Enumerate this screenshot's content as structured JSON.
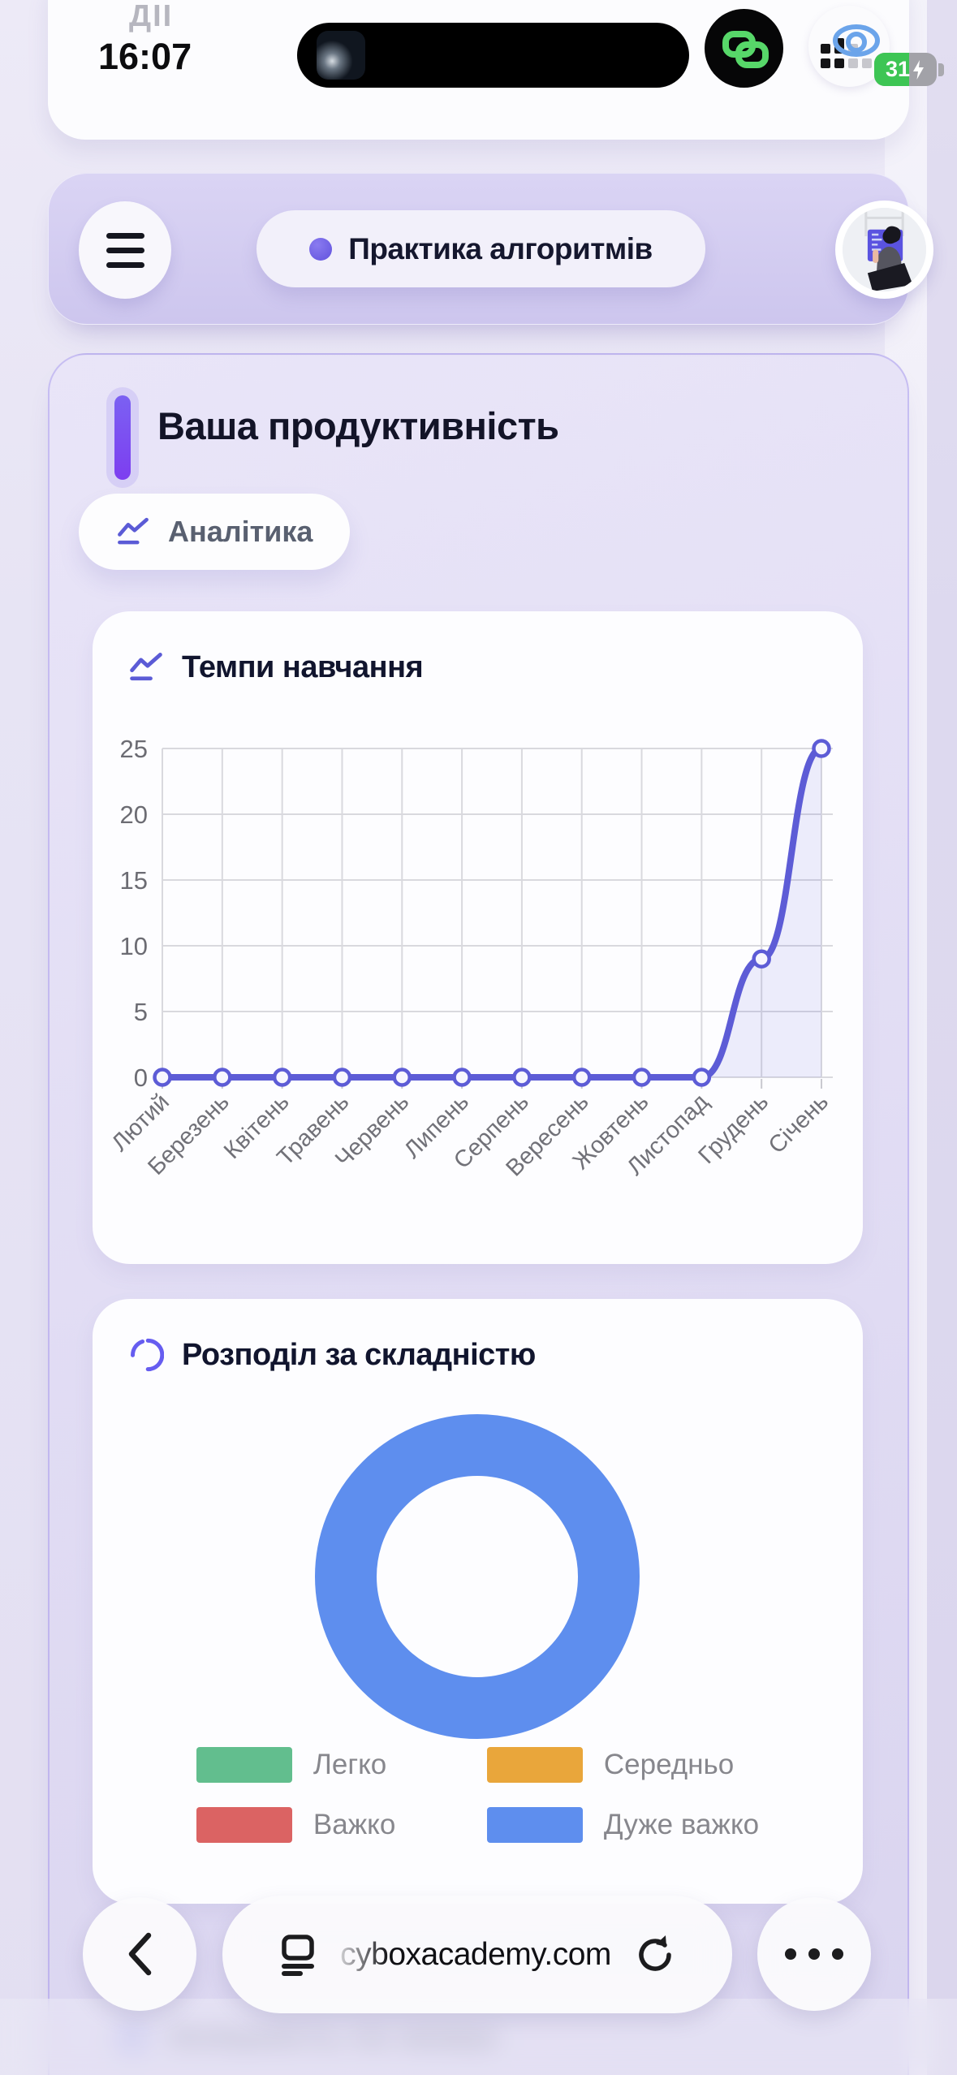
{
  "status_bar": {
    "live_activity": "ДІЇ",
    "time": "16:07",
    "battery_percent": "31",
    "battery_color": "#3dc554"
  },
  "nav": {
    "title": "Практика алгоритмів",
    "accent_color": "#6152dd"
  },
  "productivity": {
    "section_title": "Ваша продуктивність",
    "analytics_chip": "Аналітика"
  },
  "learning_pace_card": {
    "title": "Темпи навчання"
  },
  "difficulty_card": {
    "title": "Розподіл за складністю"
  },
  "difficulty_legend": {
    "items": [
      {
        "label": "Легко",
        "color": "#62be8e"
      },
      {
        "label": "Середньо",
        "color": "#e9a63b"
      },
      {
        "label": "Важко",
        "color": "#db6363"
      },
      {
        "label": "Дуже важко",
        "color": "#5e8eee"
      }
    ]
  },
  "hidden_section": {
    "title": "Успішність по мовах"
  },
  "browser_toolbar": {
    "url": "cyboxacademy.com"
  },
  "chart_data": [
    {
      "type": "line",
      "title": "Темпи навчання",
      "categories": [
        "Лютий",
        "Березень",
        "Квітень",
        "Травень",
        "Червень",
        "Липень",
        "Серпень",
        "Вересень",
        "Жовтень",
        "Листопад",
        "Грудень",
        "Січень"
      ],
      "values": [
        0,
        0,
        0,
        0,
        0,
        0,
        0,
        0,
        0,
        0,
        9,
        25
      ],
      "ylim": [
        0,
        25
      ],
      "yticks": [
        0,
        5,
        10,
        15,
        20,
        25
      ],
      "grid": true,
      "legend_position": "none",
      "line_color": "#5d5cd6",
      "fill_color": "rgba(93,92,214,0.10)",
      "marker_fill": "#f7f6fe"
    },
    {
      "type": "donut",
      "title": "Розподіл за складністю",
      "segments": [
        {
          "label": "Легко",
          "value": 0,
          "color": "#62be8e"
        },
        {
          "label": "Середньо",
          "value": 0,
          "color": "#e9a63b"
        },
        {
          "label": "Важко",
          "value": 0,
          "color": "#db6363"
        },
        {
          "label": "Дуже важко",
          "value": 100,
          "color": "#5e8eee"
        }
      ],
      "legend_position": "bottom"
    }
  ]
}
